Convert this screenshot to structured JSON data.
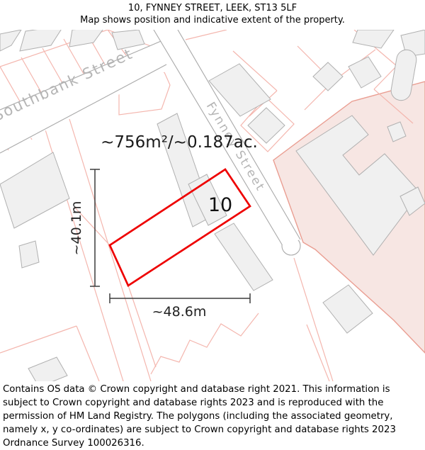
{
  "header": {
    "title": "10, FYNNEY STREET, LEEK, ST13 5LF",
    "subtitle": "Map shows position and indicative extent of the property."
  },
  "map": {
    "area_label": "~756m²/~0.187ac.",
    "plot_number": "10",
    "height_label": "~40.1m",
    "width_label": "~48.6m",
    "streets": [
      {
        "name": "Southbank Street"
      },
      {
        "name": "Fynney Street"
      }
    ],
    "colors": {
      "plot_outline": "#ee0000",
      "parcel_line": "#f4b6ae",
      "building_fill": "#f0f0f0",
      "building_stroke": "#b0b0b0",
      "street_line": "#a9a9a9",
      "street_label": "#b5b5b5",
      "highlight_area_fill": "#f7e6e3",
      "highlight_area_stroke": "#ea9e92",
      "dimension": "#3c3c3c"
    }
  },
  "footer": {
    "text": "Contains OS data © Crown copyright and database right 2021. This information is subject to Crown copyright and database rights 2023 and is reproduced with the permission of HM Land Registry. The polygons (including the associated geometry, namely x, y co-ordinates) are subject to Crown copyright and database rights 2023 Ordnance Survey 100026316."
  }
}
